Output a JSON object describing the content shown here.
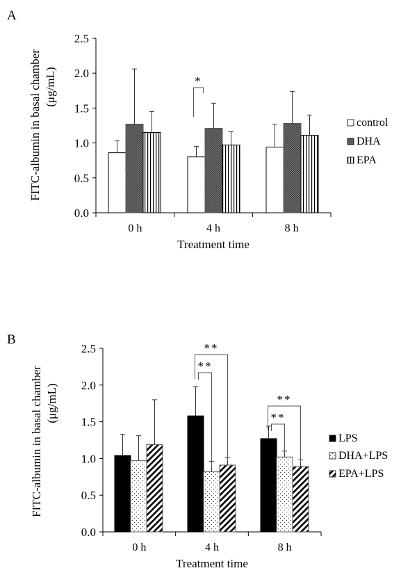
{
  "chart_data": [
    {
      "panel": "A",
      "type": "bar",
      "title": "",
      "xlabel": "Treatment time",
      "ylabel": "FITC-albumin in basal chamber",
      "ylabel_unit": "(μg/mL)",
      "ylim": [
        0,
        2.5
      ],
      "yticks": [
        "0.0",
        "0.5",
        "1.0",
        "1.5",
        "2.0",
        "2.5"
      ],
      "categories": [
        "0 h",
        "4 h",
        "8 h"
      ],
      "grid": false,
      "legend_position": "right",
      "series": [
        {
          "name": "control",
          "pattern": "white",
          "values": [
            0.86,
            0.8,
            0.94
          ],
          "error_upper": [
            1.03,
            0.95,
            1.27
          ]
        },
        {
          "name": "DHA",
          "pattern": "checker",
          "values": [
            1.27,
            1.21,
            1.28
          ],
          "error_upper": [
            2.06,
            1.57,
            1.74
          ]
        },
        {
          "name": "EPA",
          "pattern": "vertical-stripes",
          "values": [
            1.15,
            0.97,
            1.11
          ],
          "error_upper": [
            1.45,
            1.16,
            1.4
          ]
        }
      ],
      "annotations": [
        {
          "label": "*",
          "category": "4 h",
          "from": "control",
          "to": "DHA"
        }
      ]
    },
    {
      "panel": "B",
      "type": "bar",
      "title": "",
      "xlabel": "Treatment time",
      "ylabel": "FITC-albumin in basal chamber",
      "ylabel_unit": "(μg/mL)",
      "ylim": [
        0,
        2.5
      ],
      "yticks": [
        "0.0",
        "0.5",
        "1.0",
        "1.5",
        "2.0",
        "2.5"
      ],
      "categories": [
        "0 h",
        "4 h",
        "8 h"
      ],
      "grid": false,
      "legend_position": "right",
      "series": [
        {
          "name": "LPS",
          "pattern": "black",
          "values": [
            1.04,
            1.58,
            1.27
          ],
          "error_upper": [
            1.33,
            1.98,
            1.44
          ]
        },
        {
          "name": "DHA+LPS",
          "pattern": "dots",
          "values": [
            0.97,
            0.82,
            1.02
          ],
          "error_upper": [
            1.31,
            0.96,
            1.1
          ]
        },
        {
          "name": "EPA+LPS",
          "pattern": "diagonal-stripes",
          "values": [
            1.19,
            0.91,
            0.89
          ],
          "error_upper": [
            1.8,
            1.01,
            0.98
          ]
        }
      ],
      "annotations": [
        {
          "label": "**",
          "category": "4 h",
          "from": "LPS",
          "to": "DHA+LPS"
        },
        {
          "label": "**",
          "category": "4 h",
          "from": "LPS",
          "to": "EPA+LPS"
        },
        {
          "label": "**",
          "category": "8 h",
          "from": "LPS",
          "to": "DHA+LPS"
        },
        {
          "label": "**",
          "category": "8 h",
          "from": "LPS",
          "to": "EPA+LPS"
        }
      ]
    }
  ]
}
